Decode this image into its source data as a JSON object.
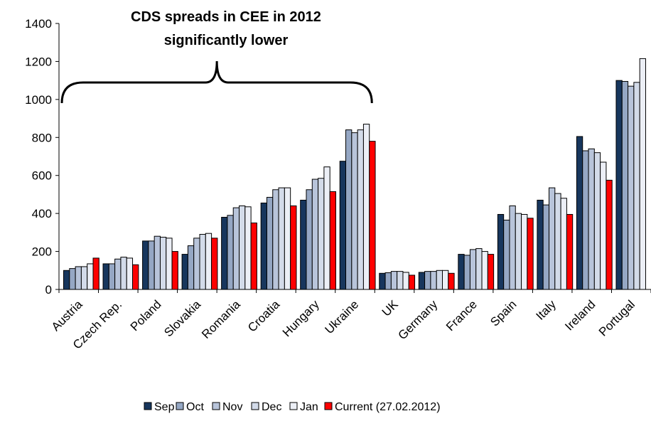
{
  "chart_data": {
    "type": "bar",
    "title": "",
    "annotation": {
      "line1": "CDS spreads in CEE in 2012",
      "line2": "significantly lower",
      "brace_from_category": "Austria",
      "brace_to_category": "Ukraine"
    },
    "xlabel": "",
    "ylabel": "",
    "ylim": [
      0,
      1400
    ],
    "yticks": [
      "0",
      "200",
      "400",
      "600",
      "800",
      "1000",
      "1200",
      "1400"
    ],
    "grid": false,
    "legend_position": "bottom",
    "categories": [
      "Austria",
      "Czech Rep.",
      "Poland",
      "Slovakia",
      "Romania",
      "Croatia",
      "Hungary",
      "Ukraine",
      "UK",
      "Germany",
      "France",
      "Spain",
      "Italy",
      "Ireland",
      "Portugal"
    ],
    "series": [
      {
        "name": "Sep",
        "color": "#17365d",
        "values": [
          100,
          135,
          255,
          185,
          380,
          455,
          470,
          675,
          85,
          90,
          185,
          395,
          470,
          805,
          1100
        ]
      },
      {
        "name": "Oct",
        "color": "#95a7c4",
        "values": [
          110,
          135,
          255,
          230,
          390,
          485,
          525,
          840,
          88,
          95,
          180,
          365,
          445,
          730,
          1095
        ]
      },
      {
        "name": "Nov",
        "color": "#b8c4da",
        "values": [
          120,
          160,
          280,
          270,
          430,
          525,
          580,
          825,
          95,
          95,
          210,
          440,
          535,
          740,
          1070
        ]
      },
      {
        "name": "Dec",
        "color": "#d3dbe9",
        "values": [
          120,
          170,
          275,
          290,
          440,
          535,
          585,
          840,
          95,
          100,
          215,
          400,
          505,
          720,
          1090
        ]
      },
      {
        "name": "Jan",
        "color": "#eceff6",
        "values": [
          135,
          165,
          270,
          295,
          435,
          535,
          645,
          870,
          90,
          100,
          200,
          395,
          480,
          670,
          1215
        ]
      },
      {
        "name": "Current (27.02.2012)",
        "color": "#ff0000",
        "values": [
          165,
          130,
          200,
          270,
          350,
          440,
          515,
          780,
          75,
          85,
          185,
          375,
          395,
          575,
          null
        ]
      }
    ]
  }
}
